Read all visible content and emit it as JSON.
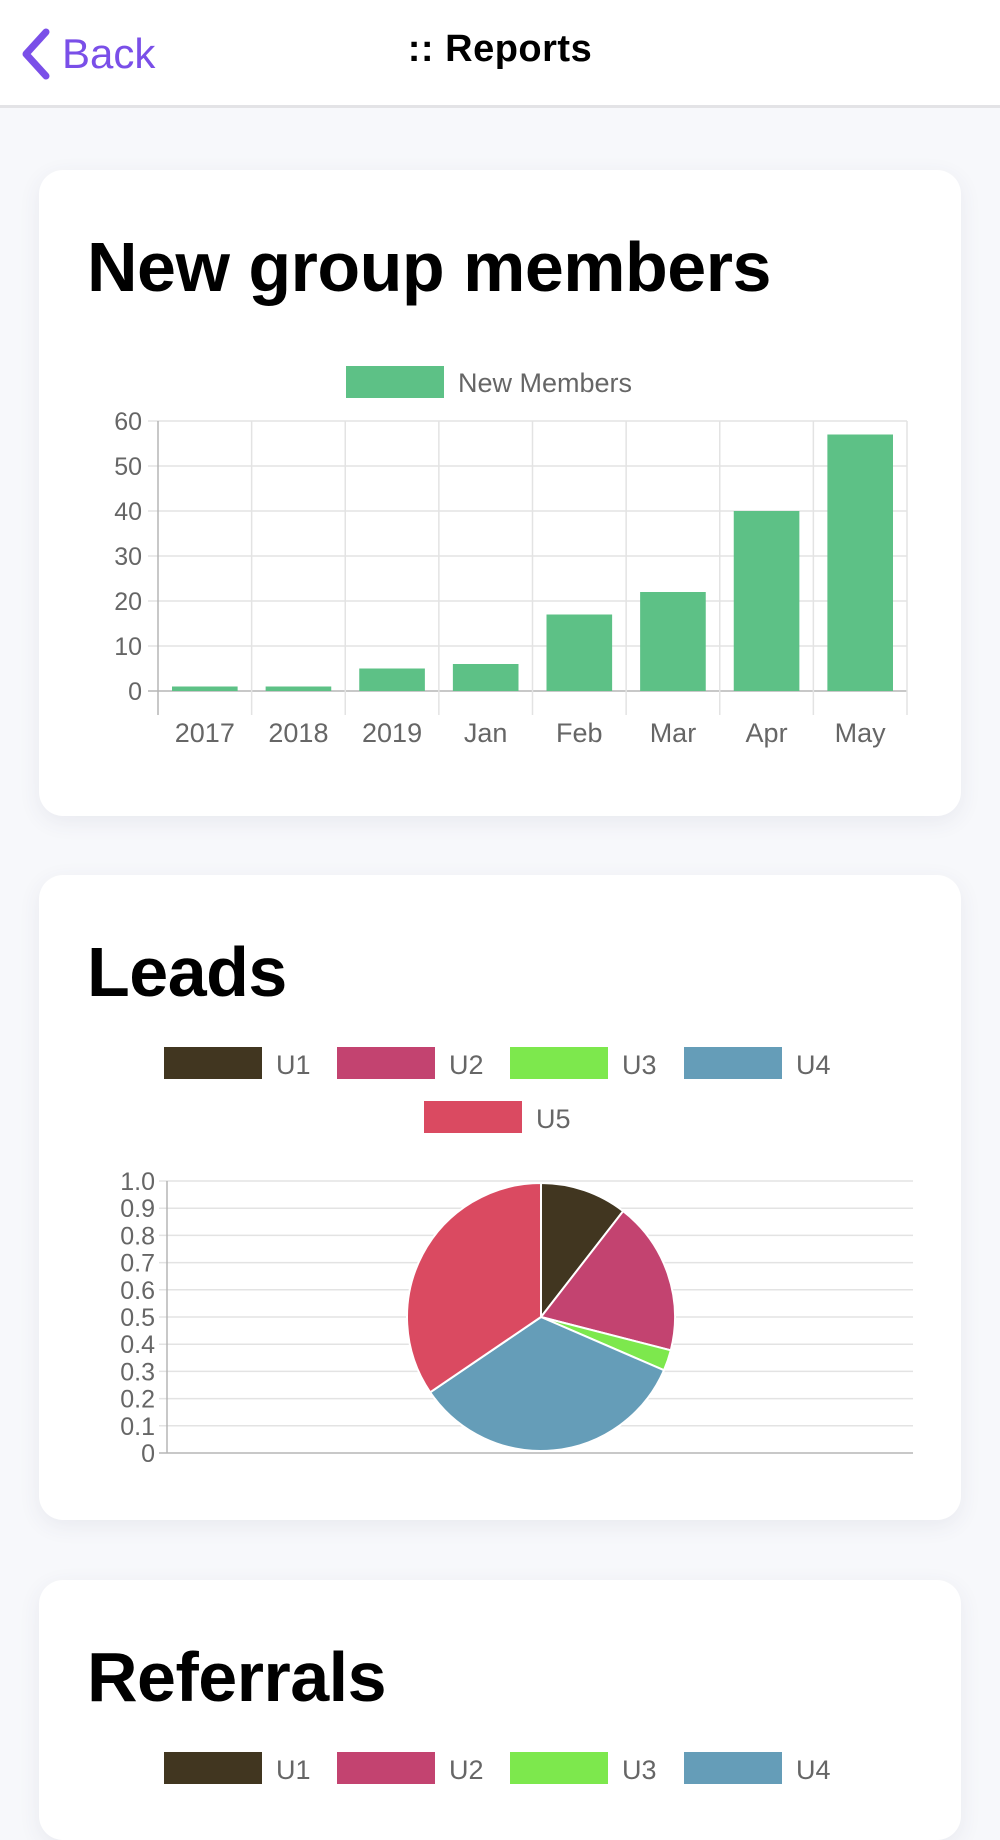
{
  "nav": {
    "back_label": "Back",
    "title": ":: Reports",
    "accent": "#7a4fe8"
  },
  "cards": [
    {
      "title": "New group members"
    },
    {
      "title": "Leads"
    },
    {
      "title": "Referrals"
    }
  ],
  "chart_data": [
    {
      "type": "bar",
      "categories": [
        "2017",
        "2018",
        "2019",
        "Jan",
        "Feb",
        "Mar",
        "Apr",
        "May"
      ],
      "series": [
        {
          "name": "New Members",
          "values": [
            1,
            1,
            5,
            6,
            17,
            22,
            40,
            57
          ],
          "color": "#5dc186"
        }
      ],
      "yticks": [
        "0",
        "10",
        "20",
        "30",
        "40",
        "50",
        "60"
      ],
      "ylim": [
        0,
        60
      ],
      "grid": true,
      "legend": "top-center"
    },
    {
      "type": "pie",
      "labels": [
        "U1",
        "U2",
        "U3",
        "U4",
        "U5"
      ],
      "values": [
        10.5,
        18.5,
        2.5,
        34,
        34.5
      ],
      "colors": [
        "#413620",
        "#c34370",
        "#7de84d",
        "#659db8",
        "#da4a61"
      ],
      "yticks": [
        "0",
        "0.1",
        "0.2",
        "0.3",
        "0.4",
        "0.5",
        "0.6",
        "0.7",
        "0.8",
        "0.9",
        "1.0"
      ],
      "ylim": [
        0,
        1
      ],
      "grid": true,
      "legend": "top-center"
    },
    {
      "type": "pie",
      "labels": [
        "U1",
        "U2",
        "U3",
        "U4"
      ],
      "colors": [
        "#413620",
        "#c34370",
        "#7de84d",
        "#659db8"
      ],
      "legend": "top-center"
    }
  ]
}
